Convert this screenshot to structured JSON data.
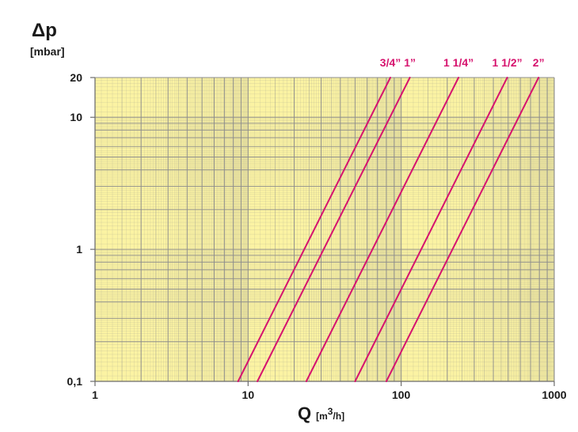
{
  "chart_data": {
    "type": "line",
    "x_scale": "log",
    "y_scale": "log",
    "xlim": [
      1,
      1000
    ],
    "ylim": [
      0.1,
      20
    ],
    "grid": true,
    "ylabel": {
      "main": "Δp",
      "unit": "[mbar]"
    },
    "xlabel": {
      "main": "Q",
      "unit_pre": "[m",
      "unit_sup": "3",
      "unit_post": "/h]"
    },
    "x_ticks": [
      {
        "value": 1,
        "label": "1"
      },
      {
        "value": 10,
        "label": "10"
      },
      {
        "value": 100,
        "label": "100"
      },
      {
        "value": 1000,
        "label": "1000"
      }
    ],
    "y_ticks": [
      {
        "value": 0.1,
        "label": "0,1"
      },
      {
        "value": 1,
        "label": "1"
      },
      {
        "value": 10,
        "label": "10"
      },
      {
        "value": 20,
        "label": "20"
      }
    ],
    "series": [
      {
        "name": "3/4”",
        "x": [
          8.6,
          85
        ],
        "y": [
          0.1,
          20
        ]
      },
      {
        "name": "1”",
        "x": [
          11.5,
          114
        ],
        "y": [
          0.1,
          20
        ]
      },
      {
        "name": "1 1/4”",
        "x": [
          24,
          237
        ],
        "y": [
          0.1,
          20
        ]
      },
      {
        "name": "1 1/2”",
        "x": [
          50,
          493
        ],
        "y": [
          0.1,
          20
        ]
      },
      {
        "name": "2”",
        "x": [
          80,
          790
        ],
        "y": [
          0.1,
          20
        ]
      }
    ]
  },
  "colors": {
    "plot_background": "#fbf3a3",
    "grid_line": "#8c8c8c",
    "axis_line": "#6c6c6c",
    "series_line": "#d6136e",
    "series_label": "#d6136e",
    "text": "#1a1a1a"
  }
}
